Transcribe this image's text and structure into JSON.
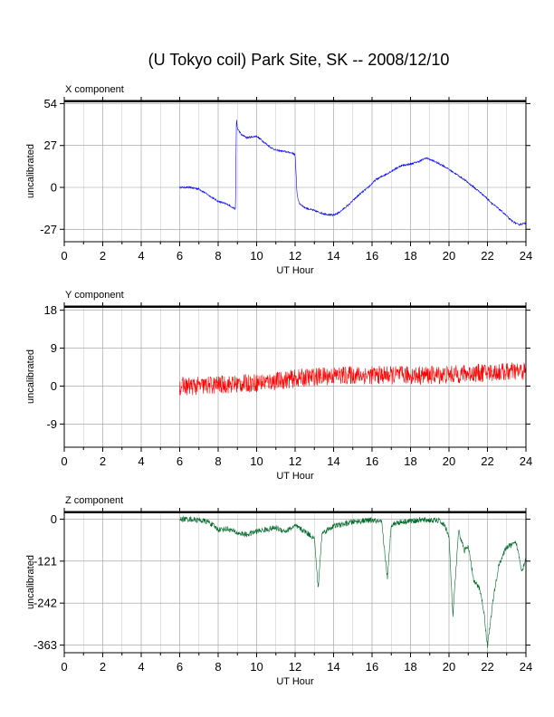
{
  "title": "(U Tokyo coil) Park Site, SK -- 2008/12/10",
  "chart_data": [
    {
      "type": "line",
      "panel_label": "X component",
      "xlabel": "UT Hour",
      "ylabel": "uncalibrated",
      "xlim": [
        0,
        24
      ],
      "xticks": [
        0,
        2,
        4,
        6,
        8,
        10,
        12,
        14,
        16,
        18,
        20,
        22,
        24
      ],
      "ylim": [
        -35,
        56
      ],
      "yticks": [
        54,
        27,
        0,
        -27
      ],
      "grid": true,
      "color": "#0000ff",
      "noise": 0.6,
      "x": [
        6.0,
        6.5,
        7.0,
        7.5,
        8.0,
        8.5,
        8.9,
        8.95,
        9.0,
        9.2,
        9.5,
        10.0,
        10.3,
        10.7,
        11.0,
        11.5,
        11.9,
        12.0,
        12.1,
        12.2,
        12.5,
        13.0,
        13.5,
        14.0,
        14.3,
        14.8,
        15.3,
        15.8,
        16.2,
        16.8,
        17.5,
        18.0,
        18.5,
        18.8,
        19.2,
        19.7,
        20.2,
        20.8,
        21.3,
        21.8,
        22.3,
        22.8,
        23.2,
        23.6,
        24.0
      ],
      "y": [
        0,
        0,
        -1,
        -5,
        -9,
        -11,
        -14,
        45,
        38,
        34,
        32,
        33,
        30,
        26,
        24,
        23,
        22,
        21,
        -4,
        -10,
        -13,
        -15,
        -17,
        -18,
        -16,
        -11,
        -5,
        0,
        5,
        9,
        14,
        15,
        17,
        19,
        17,
        14,
        10,
        5,
        0,
        -5,
        -11,
        -16,
        -21,
        -24,
        -23
      ]
    },
    {
      "type": "line",
      "panel_label": "Y component",
      "xlabel": "UT Hour",
      "ylabel": "uncalibrated",
      "xlim": [
        0,
        24
      ],
      "xticks": [
        0,
        2,
        4,
        6,
        8,
        10,
        12,
        14,
        16,
        18,
        20,
        22,
        24
      ],
      "ylim": [
        -14.5,
        19
      ],
      "yticks": [
        18,
        9,
        0,
        -9
      ],
      "grid": true,
      "color": "#ff0000",
      "noise": 2.2,
      "x": [
        6.0,
        7.0,
        8.0,
        9.0,
        10.0,
        11.0,
        12.0,
        13.0,
        14.0,
        15.0,
        16.0,
        17.0,
        18.0,
        19.0,
        20.0,
        21.0,
        22.0,
        23.0,
        24.0
      ],
      "y": [
        0,
        0,
        0.3,
        0.5,
        0.8,
        1.2,
        1.8,
        2.2,
        2.5,
        2.6,
        2.6,
        2.6,
        2.6,
        2.6,
        2.7,
        3.0,
        3.2,
        3.4,
        3.5
      ]
    },
    {
      "type": "line",
      "panel_label": "Z component",
      "xlabel": "UT Hour",
      "ylabel": "uncalibrated",
      "xlim": [
        0,
        24
      ],
      "xticks": [
        0,
        2,
        4,
        6,
        8,
        10,
        12,
        14,
        16,
        18,
        20,
        22,
        24
      ],
      "ylim": [
        -385,
        22
      ],
      "yticks": [
        0,
        -121,
        -242,
        -363
      ],
      "grid": true,
      "color": "#006a2a",
      "noise": 8,
      "x": [
        6.0,
        6.5,
        7.0,
        7.5,
        8.0,
        8.5,
        9.0,
        9.5,
        10.0,
        10.5,
        11.0,
        11.5,
        12.0,
        12.5,
        13.0,
        13.2,
        13.4,
        14.0,
        14.5,
        15.0,
        15.5,
        16.0,
        16.5,
        16.8,
        17.0,
        17.5,
        18.0,
        18.5,
        19.0,
        19.5,
        19.8,
        20.0,
        20.2,
        20.5,
        20.8,
        21.0,
        21.3,
        21.6,
        21.8,
        22.0,
        22.3,
        22.6,
        23.0,
        23.5,
        23.8,
        24.0
      ],
      "y": [
        0,
        0,
        -3,
        -8,
        -30,
        -28,
        -40,
        -45,
        -35,
        -30,
        -25,
        -35,
        -20,
        -35,
        -55,
        -200,
        -40,
        -20,
        -15,
        -8,
        -5,
        -3,
        -10,
        -170,
        -15,
        -8,
        -5,
        -3,
        -3,
        -5,
        -20,
        -50,
        -280,
        -35,
        -90,
        -80,
        -180,
        -200,
        -260,
        -365,
        -230,
        -130,
        -80,
        -70,
        -150,
        -110
      ]
    }
  ]
}
